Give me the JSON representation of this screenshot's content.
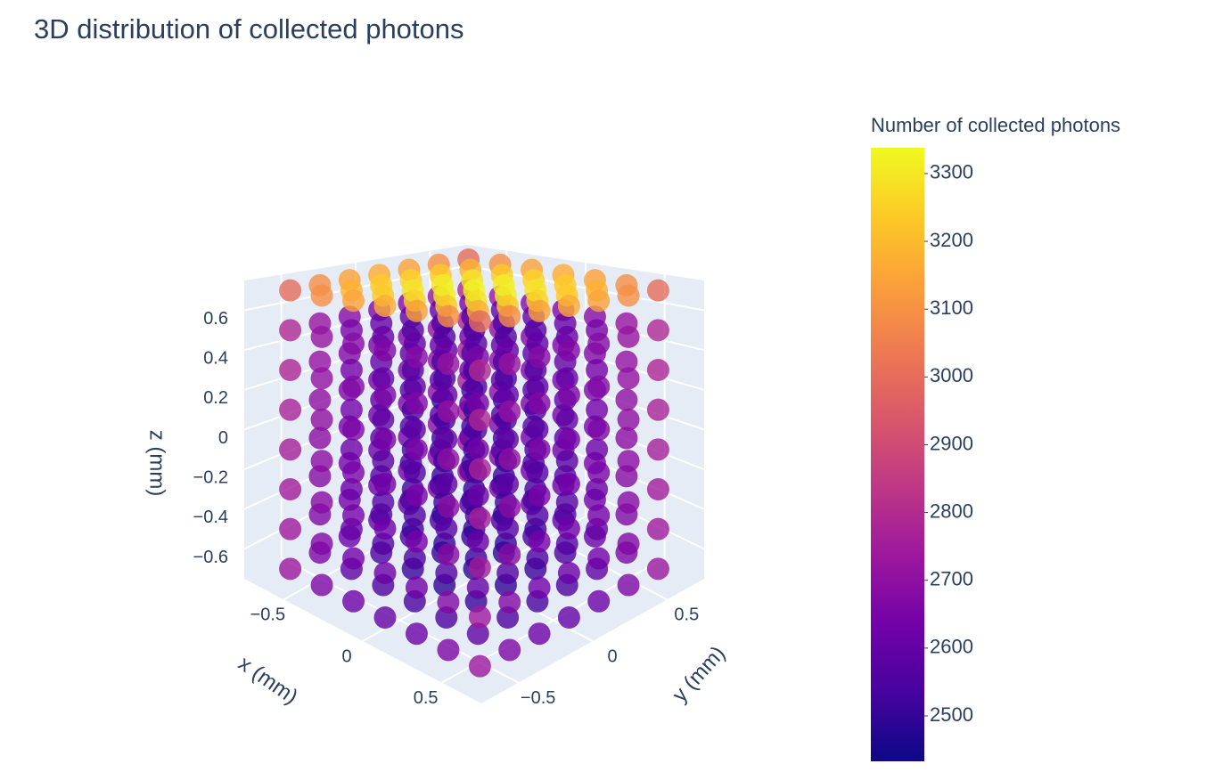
{
  "chart_data": {
    "type": "scatter3d",
    "title": "3D distribution of collected photons",
    "x_label": "x (mm)",
    "y_label": "y (mm)",
    "z_label": "z (mm)",
    "x": [
      -0.6,
      -0.4,
      -0.2,
      0,
      0.2,
      0.4,
      0.6
    ],
    "y": [
      -0.6,
      -0.4,
      -0.2,
      0,
      0.2,
      0.4,
      0.6
    ],
    "z": [
      -0.7,
      -0.5,
      -0.3,
      -0.1,
      0.1,
      0.3,
      0.5,
      0.7
    ],
    "values": [
      [
        [
          2730,
          2740,
          2750,
          2760,
          2770,
          2780,
          2790,
          3000
        ],
        [
          2661,
          2671,
          2681,
          2691,
          2701,
          2711,
          2721,
          3092
        ],
        [
          2619,
          2629,
          2639,
          2649,
          2659,
          2669,
          2679,
          3147
        ],
        [
          2605,
          2615,
          2625,
          2635,
          2645,
          2655,
          2665,
          3165
        ],
        [
          2619,
          2629,
          2639,
          2649,
          2659,
          2669,
          2679,
          3147
        ],
        [
          2661,
          2671,
          2681,
          2691,
          2701,
          2711,
          2721,
          3092
        ],
        [
          2730,
          2740,
          2750,
          2760,
          2770,
          2780,
          2790,
          3000
        ]
      ],
      [
        [
          2661,
          2671,
          2681,
          2691,
          2701,
          2711,
          2721,
          3092
        ],
        [
          2591,
          2601,
          2611,
          2621,
          2631,
          2641,
          2651,
          3183
        ],
        [
          2550,
          2560,
          2570,
          2580,
          2590,
          2600,
          2610,
          3238
        ],
        [
          2536,
          2546,
          2556,
          2566,
          2576,
          2586,
          2596,
          3257
        ],
        [
          2550,
          2560,
          2570,
          2580,
          2590,
          2600,
          2610,
          3238
        ],
        [
          2591,
          2601,
          2611,
          2621,
          2631,
          2641,
          2651,
          3183
        ],
        [
          2661,
          2671,
          2681,
          2691,
          2701,
          2711,
          2721,
          3092
        ]
      ],
      [
        [
          2619,
          2629,
          2639,
          2649,
          2659,
          2669,
          2679,
          3147
        ],
        [
          2550,
          2560,
          2570,
          2580,
          2590,
          2600,
          2610,
          3238
        ],
        [
          2508,
          2518,
          2528,
          2538,
          2548,
          2558,
          2568,
          3293
        ],
        [
          2494,
          2504,
          2514,
          2524,
          2534,
          2544,
          2554,
          3312
        ],
        [
          2508,
          2518,
          2528,
          2538,
          2548,
          2558,
          2568,
          3293
        ],
        [
          2550,
          2560,
          2570,
          2580,
          2590,
          2600,
          2610,
          3238
        ],
        [
          2619,
          2629,
          2639,
          2649,
          2659,
          2669,
          2679,
          3147
        ]
      ],
      [
        [
          2605,
          2615,
          2625,
          2635,
          2645,
          2655,
          2665,
          3165
        ],
        [
          2536,
          2546,
          2556,
          2566,
          2576,
          2586,
          2596,
          3257
        ],
        [
          2494,
          2504,
          2514,
          2524,
          2534,
          2544,
          2554,
          3312
        ],
        [
          2480,
          2490,
          2500,
          2510,
          2520,
          2530,
          2540,
          3330
        ],
        [
          2494,
          2504,
          2514,
          2524,
          2534,
          2544,
          2554,
          3312
        ],
        [
          2536,
          2546,
          2556,
          2566,
          2576,
          2586,
          2596,
          3257
        ],
        [
          2605,
          2615,
          2625,
          2635,
          2645,
          2655,
          2665,
          3165
        ]
      ],
      [
        [
          2619,
          2629,
          2639,
          2649,
          2659,
          2669,
          2679,
          3147
        ],
        [
          2550,
          2560,
          2570,
          2580,
          2590,
          2600,
          2610,
          3238
        ],
        [
          2508,
          2518,
          2528,
          2538,
          2548,
          2558,
          2568,
          3293
        ],
        [
          2494,
          2504,
          2514,
          2524,
          2534,
          2544,
          2554,
          3312
        ],
        [
          2508,
          2518,
          2528,
          2538,
          2548,
          2558,
          2568,
          3293
        ],
        [
          2550,
          2560,
          2570,
          2580,
          2590,
          2600,
          2610,
          3238
        ],
        [
          2619,
          2629,
          2639,
          2649,
          2659,
          2669,
          2679,
          3147
        ]
      ],
      [
        [
          2661,
          2671,
          2681,
          2691,
          2701,
          2711,
          2721,
          3092
        ],
        [
          2591,
          2601,
          2611,
          2621,
          2631,
          2641,
          2651,
          3183
        ],
        [
          2550,
          2560,
          2570,
          2580,
          2590,
          2600,
          2610,
          3238
        ],
        [
          2536,
          2546,
          2556,
          2566,
          2576,
          2586,
          2596,
          3257
        ],
        [
          2550,
          2560,
          2570,
          2580,
          2590,
          2600,
          2610,
          3238
        ],
        [
          2591,
          2601,
          2611,
          2621,
          2631,
          2641,
          2651,
          3183
        ],
        [
          2661,
          2671,
          2681,
          2691,
          2701,
          2711,
          2721,
          3092
        ]
      ],
      [
        [
          2730,
          2740,
          2750,
          2760,
          2770,
          2780,
          2790,
          3000
        ],
        [
          2661,
          2671,
          2681,
          2691,
          2701,
          2711,
          2721,
          3092
        ],
        [
          2619,
          2629,
          2639,
          2649,
          2659,
          2669,
          2679,
          3147
        ],
        [
          2605,
          2615,
          2625,
          2635,
          2645,
          2655,
          2665,
          3165
        ],
        [
          2619,
          2629,
          2639,
          2649,
          2659,
          2669,
          2679,
          3147
        ],
        [
          2661,
          2671,
          2681,
          2691,
          2701,
          2711,
          2721,
          3092
        ],
        [
          2730,
          2740,
          2750,
          2760,
          2770,
          2780,
          2790,
          3000
        ]
      ]
    ],
    "xlim": [
      -0.75,
      0.75
    ],
    "ylim": [
      -0.75,
      0.75
    ],
    "zlim": [
      -0.75,
      0.75
    ],
    "xticks": [
      {
        "value": -0.5,
        "label": "−0.5"
      },
      0,
      0.5
    ],
    "yticks": [
      {
        "value": -0.5,
        "label": "−0.5"
      },
      0,
      0.5
    ],
    "zticks": [
      {
        "value": -0.6,
        "label": "−0.6"
      },
      {
        "value": -0.4,
        "label": "−0.4"
      },
      {
        "value": -0.2,
        "label": "−0.2"
      },
      0,
      0.2,
      0.4,
      0.6
    ],
    "colorbar_title": "Number of collected photons",
    "clim": [
      2433,
      3338
    ],
    "cticks": [
      2500,
      2600,
      2700,
      2800,
      2900,
      3000,
      3100,
      3200,
      3300
    ],
    "colorscale": [
      "#0d0887",
      "#46039f",
      "#7201a8",
      "#9c179e",
      "#bd3786",
      "#d8576b",
      "#ed7953",
      "#fb9f3a",
      "#fdca26",
      "#f0f921"
    ],
    "opacity": 0.8,
    "grid": true
  }
}
